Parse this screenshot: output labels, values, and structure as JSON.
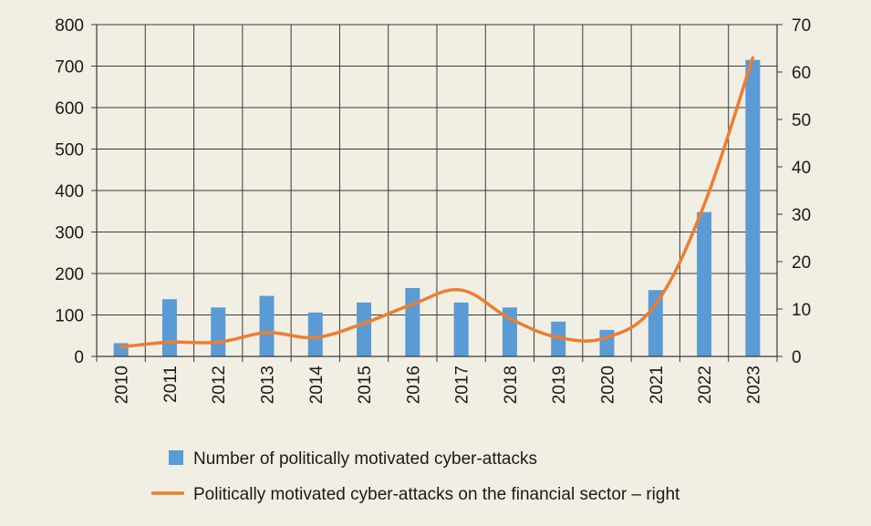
{
  "chart_data": {
    "type": "bar",
    "categories": [
      "2010",
      "2011",
      "2012",
      "2013",
      "2014",
      "2015",
      "2016",
      "2017",
      "2018",
      "2019",
      "2020",
      "2021",
      "2022",
      "2023"
    ],
    "series": [
      {
        "name": "Number of politically motivated cyber-attacks",
        "type": "bar",
        "axis": "left",
        "values": [
          32,
          138,
          118,
          146,
          106,
          130,
          165,
          130,
          118,
          84,
          64,
          160,
          348,
          715
        ]
      },
      {
        "name": "Politically motivated cyber-attacks on the financial sector – right",
        "type": "line",
        "axis": "right",
        "values": [
          2,
          3,
          3,
          5,
          4,
          7,
          11,
          14,
          8,
          4,
          4,
          11,
          32,
          63
        ]
      }
    ],
    "ylim": [
      0,
      800
    ],
    "yticks": [
      0,
      100,
      200,
      300,
      400,
      500,
      600,
      700,
      800
    ],
    "y2lim": [
      0,
      70
    ],
    "y2ticks": [
      0,
      10,
      20,
      30,
      40,
      50,
      60,
      70
    ],
    "grid": true,
    "legend_position": "bottom",
    "colors": {
      "bar": "#5b9bd5",
      "line": "#ed7d31",
      "background": "#f1efe3",
      "grid": "#3a3a3a"
    }
  }
}
